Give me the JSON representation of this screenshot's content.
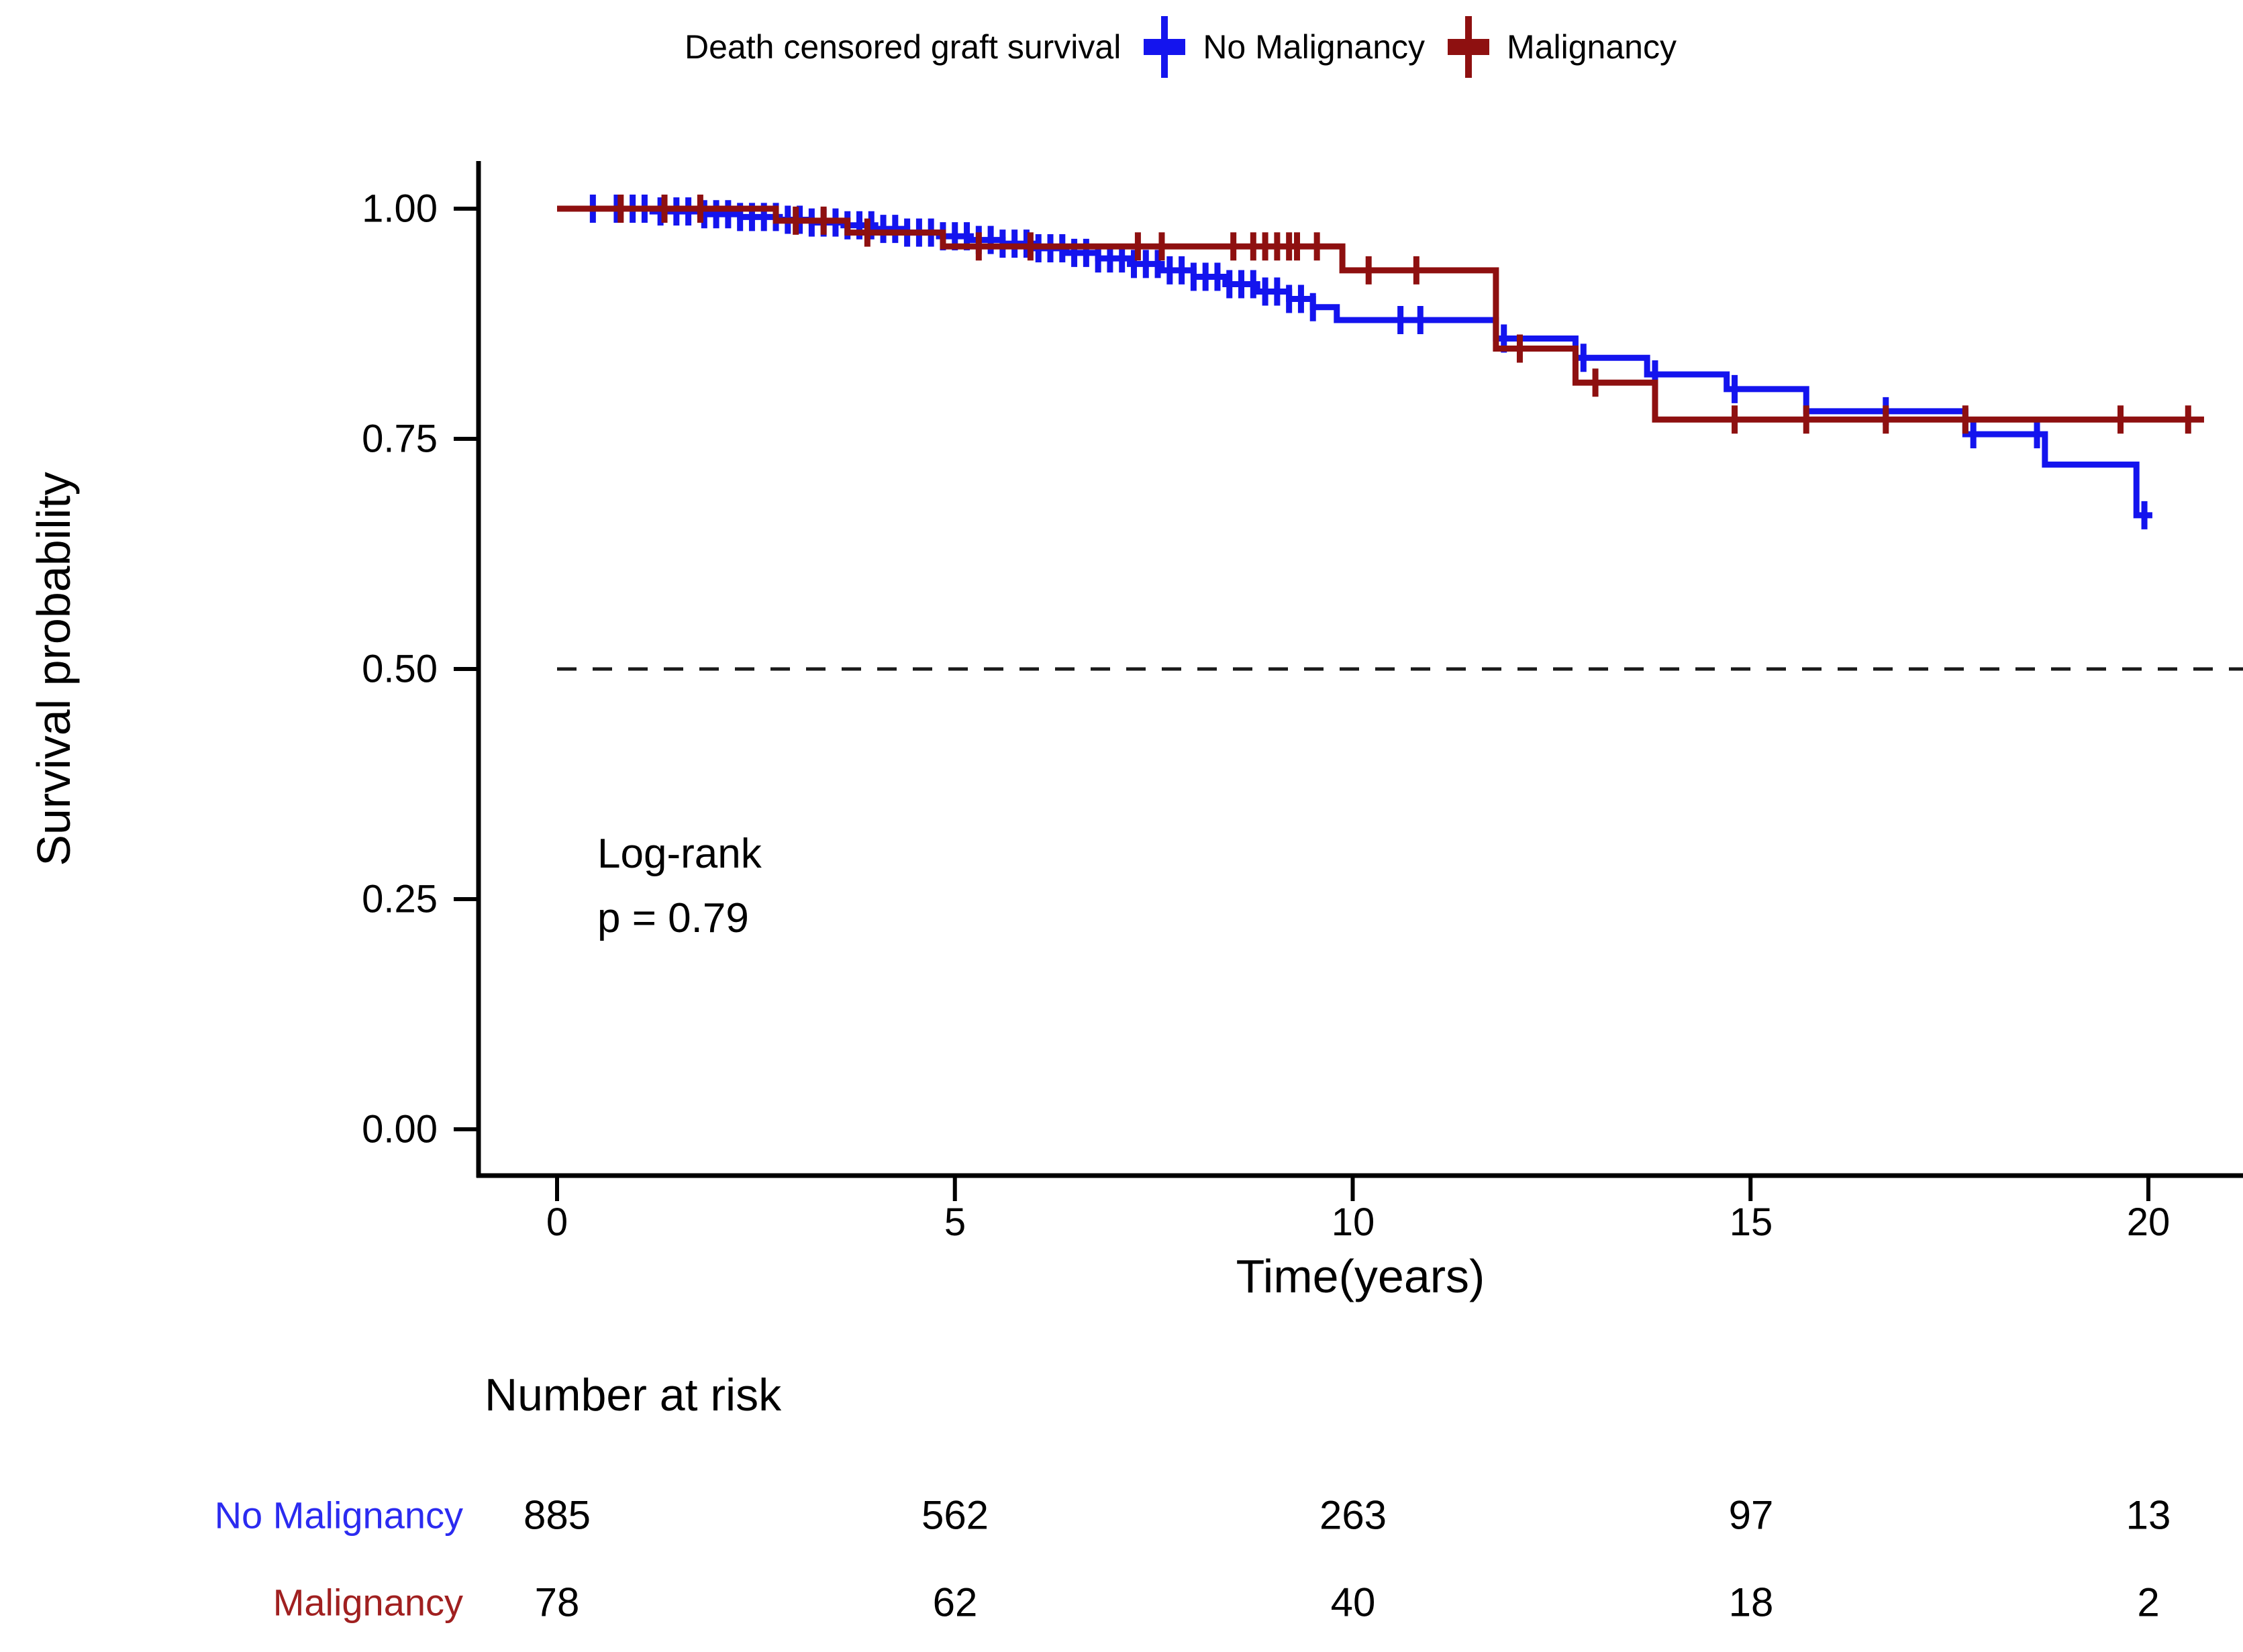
{
  "legend": {
    "title": "Death censored graft survival",
    "items": [
      {
        "label": "No Malignancy",
        "color": "#1414ee"
      },
      {
        "label": "Malignancy",
        "color": "#8e1010"
      }
    ]
  },
  "axes": {
    "y_label": "Survival probability",
    "x_label": "Time(years)",
    "y_ticks": [
      "1.00",
      "0.75",
      "0.50",
      "0.25",
      "0.00"
    ],
    "x_ticks": [
      "0",
      "5",
      "10",
      "15",
      "20"
    ]
  },
  "annotation": {
    "line1": "Log-rank",
    "line2": "p = 0.79"
  },
  "risk_table": {
    "title": "Number at risk",
    "rows": [
      {
        "label": "No Malignancy",
        "color": "#2b2bf0",
        "values": [
          "885",
          "562",
          "263",
          "97",
          "13"
        ]
      },
      {
        "label": "Malignancy",
        "color": "#a02020",
        "values": [
          "78",
          "62",
          "40",
          "18",
          "2"
        ]
      }
    ]
  },
  "chart_data": {
    "type": "line",
    "subtype": "kaplan-meier-step",
    "title": "Death censored graft survival",
    "xlabel": "Time(years)",
    "ylabel": "Survival probability",
    "xlim": [
      0,
      21.2
    ],
    "ylim": [
      0,
      1.0
    ],
    "x_ticks": [
      0,
      5,
      10,
      15,
      20
    ],
    "y_ticks": [
      1.0,
      0.75,
      0.5,
      0.25,
      0.0
    ],
    "grid": false,
    "legend_position": "top",
    "reference_line_y": 0.5,
    "logrank_p": 0.79,
    "series": [
      {
        "name": "No Malignancy",
        "color": "#1414ee",
        "steps": [
          [
            0,
            1.0
          ],
          [
            1.2,
            0.997
          ],
          [
            1.8,
            0.994
          ],
          [
            2.3,
            0.991
          ],
          [
            2.8,
            0.988
          ],
          [
            3.2,
            0.985
          ],
          [
            3.6,
            0.982
          ],
          [
            4.0,
            0.978
          ],
          [
            4.4,
            0.974
          ],
          [
            4.8,
            0.97
          ],
          [
            5.2,
            0.966
          ],
          [
            5.6,
            0.962
          ],
          [
            6.0,
            0.957
          ],
          [
            6.4,
            0.952
          ],
          [
            6.8,
            0.946
          ],
          [
            7.2,
            0.94
          ],
          [
            7.6,
            0.933
          ],
          [
            8.0,
            0.926
          ],
          [
            8.4,
            0.918
          ],
          [
            8.8,
            0.91
          ],
          [
            9.2,
            0.902
          ],
          [
            9.5,
            0.893
          ],
          [
            9.8,
            0.879
          ],
          [
            11.8,
            0.859
          ],
          [
            12.8,
            0.838
          ],
          [
            13.7,
            0.82
          ],
          [
            14.7,
            0.804
          ],
          [
            15.7,
            0.78
          ],
          [
            17.7,
            0.755
          ],
          [
            18.7,
            0.722
          ],
          [
            19.85,
            0.667
          ]
        ],
        "end_time": 20.05,
        "censor_times": [
          0.45,
          0.75,
          0.95,
          1.1,
          1.3,
          1.5,
          1.65,
          1.85,
          2.0,
          2.15,
          2.3,
          2.45,
          2.6,
          2.75,
          2.9,
          3.05,
          3.2,
          3.35,
          3.5,
          3.65,
          3.8,
          3.95,
          4.1,
          4.25,
          4.4,
          4.55,
          4.7,
          4.85,
          5.0,
          5.15,
          5.3,
          5.45,
          5.6,
          5.75,
          5.9,
          6.05,
          6.2,
          6.35,
          6.5,
          6.65,
          6.8,
          6.95,
          7.1,
          7.25,
          7.4,
          7.55,
          7.7,
          7.85,
          8.0,
          8.15,
          8.3,
          8.45,
          8.6,
          8.75,
          8.9,
          9.05,
          9.2,
          9.35,
          9.5,
          10.6,
          10.85,
          11.9,
          12.9,
          13.8,
          14.8,
          16.7,
          17.8,
          18.6,
          19.95
        ]
      },
      {
        "name": "Malignancy",
        "color": "#8e1010",
        "steps": [
          [
            0,
            1.0
          ],
          [
            2.75,
            0.987
          ],
          [
            3.65,
            0.974
          ],
          [
            4.85,
            0.959
          ],
          [
            9.87,
            0.933
          ],
          [
            11.8,
            0.848
          ],
          [
            12.8,
            0.811
          ],
          [
            13.8,
            0.771
          ]
        ],
        "end_time": 20.7,
        "censor_times": [
          0.8,
          1.35,
          1.8,
          3.0,
          3.35,
          3.9,
          5.3,
          5.95,
          7.3,
          7.6,
          8.5,
          8.75,
          8.9,
          9.05,
          9.2,
          9.3,
          9.55,
          10.2,
          10.8,
          12.1,
          13.05,
          14.8,
          15.7,
          16.7,
          17.7,
          19.65,
          20.5
        ]
      }
    ],
    "number_at_risk": {
      "times": [
        0,
        5,
        10,
        15,
        20
      ],
      "series": [
        {
          "name": "No Malignancy",
          "values": [
            885,
            562,
            263,
            97,
            13
          ]
        },
        {
          "name": "Malignancy",
          "values": [
            78,
            62,
            40,
            18,
            2
          ]
        }
      ]
    }
  },
  "style": {
    "axis_color": "#000000",
    "reference_line_color": "#1a1a1a",
    "curve_width": 9
  }
}
